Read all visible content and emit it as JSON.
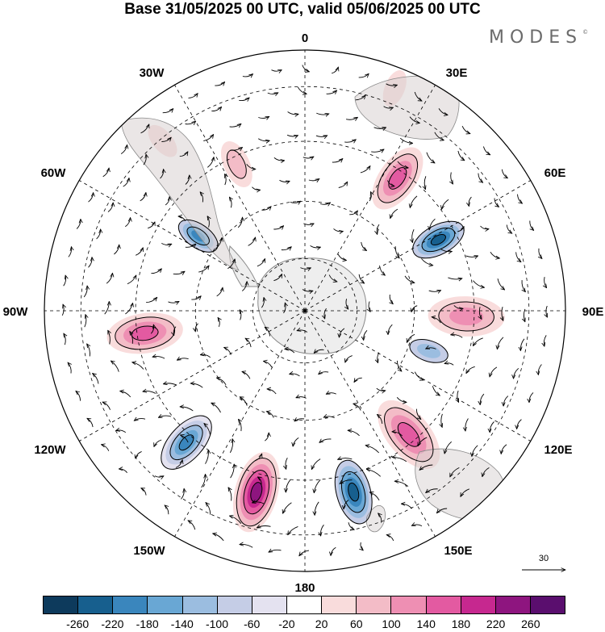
{
  "title": "Base 31/05/2025 00 UTC, valid 05/06/2025 00 UTC",
  "brand": {
    "text": "MODES",
    "mark": "©"
  },
  "longitude_labels": {
    "lon_0": "0",
    "lon_30e": "30E",
    "lon_60e": "60E",
    "lon_90e": "90E",
    "lon_120e": "120E",
    "lon_150e": "150E",
    "lon_180": "180",
    "lon_150w": "150W",
    "lon_120w": "120W",
    "lon_90w": "90W",
    "lon_60w": "60W",
    "lon_30w": "30W"
  },
  "reference_vector": {
    "label": "30"
  },
  "colorbar": {
    "colors": [
      "#0d3a5c",
      "#175f8e",
      "#3a86bd",
      "#69a7d4",
      "#9bbde0",
      "#c5cde6",
      "#e4e2f0",
      "#ffffff",
      "#f9dcdc",
      "#f3bcc7",
      "#ee8fb3",
      "#e35aa1",
      "#c6288f",
      "#8e157f",
      "#5a0e6e"
    ],
    "ticks": [
      "-260",
      "-220",
      "-180",
      "-140",
      "-100",
      "-60",
      "-20",
      "20",
      "60",
      "100",
      "140",
      "180",
      "220",
      "260"
    ]
  },
  "map": {
    "projection": "south-polar-stereographic",
    "anomalies": [
      {
        "lon": 5,
        "r": 0.85,
        "value": -40,
        "size": 0.08
      },
      {
        "lon": 35,
        "r": 0.62,
        "value": 150,
        "size": 0.13
      },
      {
        "lon": 62,
        "r": 0.58,
        "value": -240,
        "size": 0.12
      },
      {
        "lon": 92,
        "r": 0.62,
        "value": 110,
        "size": 0.14
      },
      {
        "lon": 108,
        "r": 0.5,
        "value": -120,
        "size": 0.1
      },
      {
        "lon": 140,
        "r": 0.62,
        "value": 170,
        "size": 0.15
      },
      {
        "lon": 165,
        "r": 0.72,
        "value": -230,
        "size": 0.14
      },
      {
        "lon": 195,
        "r": 0.72,
        "value": 250,
        "size": 0.15
      },
      {
        "lon": 222,
        "r": 0.68,
        "value": -220,
        "size": 0.14
      },
      {
        "lon": 262,
        "r": 0.62,
        "value": 170,
        "size": 0.14
      },
      {
        "lon": 305,
        "r": 0.5,
        "value": -190,
        "size": 0.1
      },
      {
        "lon": 335,
        "r": 0.62,
        "value": 70,
        "size": 0.09
      },
      {
        "lon": 22,
        "r": 0.92,
        "value": 50,
        "size": 0.07
      },
      {
        "lon": 320,
        "r": 0.85,
        "value": 40,
        "size": 0.07
      }
    ]
  }
}
